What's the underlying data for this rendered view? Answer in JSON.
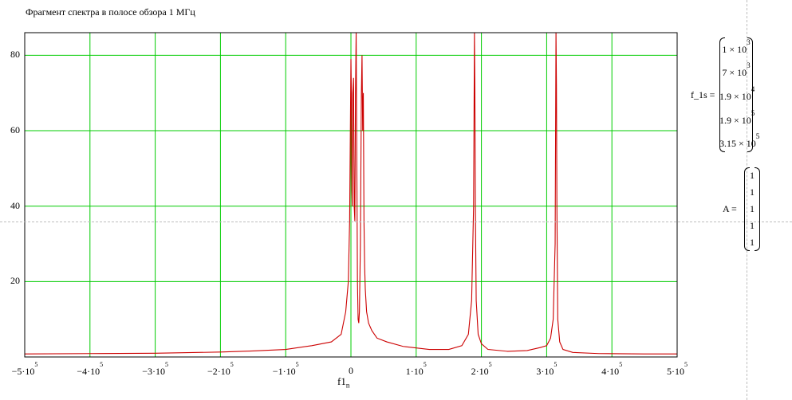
{
  "title": "Фрагмент спектра в полосе обзора 1 МГц",
  "xlabel_base": "f1",
  "xlabel_sub": "n",
  "colors": {
    "grid": "#00cc00",
    "series": "#cc0000",
    "axis": "#000000"
  },
  "f1s": {
    "label": "f_1s =",
    "rows": [
      {
        "m": "1 × 10",
        "e": "3"
      },
      {
        "m": "7 × 10",
        "e": "3"
      },
      {
        "m": "1.9 × 10",
        "e": "4"
      },
      {
        "m": "1.9 × 10",
        "e": "5"
      },
      {
        "m": "3.15 × 10",
        "e": "5"
      }
    ]
  },
  "A": {
    "label": "A =",
    "rows": [
      "1",
      "1",
      "1",
      "1",
      "1"
    ]
  },
  "chart_data": {
    "type": "line",
    "xlim": [
      -500000,
      500000
    ],
    "ylim": [
      0,
      86
    ],
    "grid": true,
    "x_ticks": [
      {
        "m": "−5·10",
        "e": "5"
      },
      {
        "m": "−4·10",
        "e": "5"
      },
      {
        "m": "−3·10",
        "e": "5"
      },
      {
        "m": "−2·10",
        "e": "5"
      },
      {
        "m": "−1·10",
        "e": "5"
      },
      {
        "m": "0",
        "e": ""
      },
      {
        "m": "1·10",
        "e": "5"
      },
      {
        "m": "2·10",
        "e": "5"
      },
      {
        "m": "3·10",
        "e": "5"
      },
      {
        "m": "4·10",
        "e": "5"
      },
      {
        "m": "5·10",
        "e": "5"
      }
    ],
    "x_tick_values": [
      -500000,
      -400000,
      -300000,
      -200000,
      -100000,
      0,
      100000,
      200000,
      300000,
      400000,
      500000
    ],
    "y_ticks": [
      "20",
      "40",
      "60",
      "80"
    ],
    "y_tick_values": [
      20,
      40,
      60,
      80
    ],
    "series": [
      {
        "x": [
          -500000,
          -400000,
          -300000,
          -200000,
          -150000,
          -100000,
          -60000,
          -30000,
          -15000,
          -8000,
          -4000,
          -2000,
          -800,
          0,
          800,
          1500,
          2000,
          2800,
          4000,
          5000,
          6000,
          7000,
          8000,
          9000,
          10000,
          11000,
          12000,
          13000,
          14500,
          16000,
          17000,
          18000,
          19000,
          20000,
          21000,
          22000,
          24000,
          27000,
          32000,
          40000,
          55000,
          80000,
          120000,
          150000,
          170000,
          180000,
          185000,
          188000,
          189300,
          190000,
          190700,
          192000,
          195000,
          200000,
          210000,
          240000,
          270000,
          290000,
          300000,
          306000,
          310000,
          313000,
          314300,
          315000,
          315700,
          317000,
          320000,
          325000,
          340000,
          380000,
          450000,
          500000
        ],
        "y": [
          0.8,
          0.9,
          1.0,
          1.3,
          1.6,
          2.0,
          3.0,
          4.0,
          6.0,
          12.0,
          20.0,
          36.0,
          62.0,
          79.0,
          68.0,
          44.0,
          40.0,
          70.0,
          74.0,
          40.0,
          36.0,
          70.0,
          86.0,
          52.0,
          20.0,
          10.0,
          9.0,
          12.0,
          30.0,
          70.0,
          80.0,
          60.0,
          70.0,
          36.0,
          24.0,
          18.0,
          12.0,
          9.0,
          7.0,
          5.0,
          4.0,
          2.8,
          2.0,
          2.0,
          3.0,
          6.0,
          15.0,
          40.0,
          86.0,
          70.0,
          40.0,
          15.0,
          6.0,
          3.5,
          2.0,
          1.5,
          1.7,
          2.5,
          3.0,
          5.0,
          10.0,
          30.0,
          86.0,
          72.0,
          40.0,
          10.0,
          4.0,
          2.0,
          1.2,
          0.9,
          0.8,
          0.8
        ]
      }
    ]
  }
}
